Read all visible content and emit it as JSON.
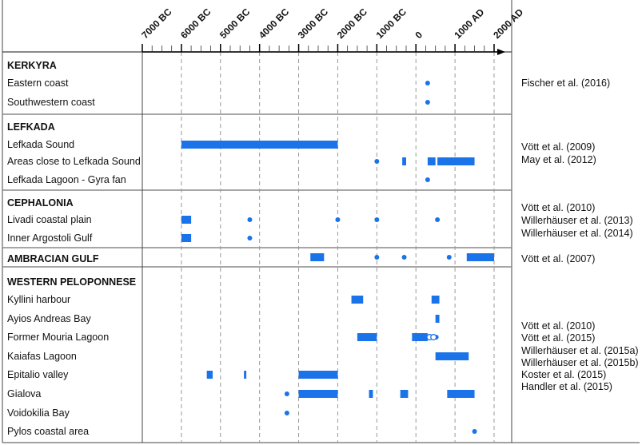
{
  "chart_data": {
    "type": "timeline",
    "x_tick_labels": [
      "7000 BC",
      "6000 BC",
      "5000 BC",
      "4000 BC",
      "3000 BC",
      "2000 BC",
      "1000 BC",
      "0",
      "1000 AD",
      "2000 AD"
    ],
    "x_range": [
      -7000,
      2000
    ],
    "groups": [
      {
        "name": "KERKYRA",
        "rows": [
          {
            "label": "Eastern coast",
            "bars": [],
            "points": [
              300
            ]
          },
          {
            "label": "Southwestern coast",
            "bars": [],
            "points": [
              300
            ]
          }
        ],
        "references": [
          "Fischer et al. (2016)"
        ]
      },
      {
        "name": "LEFKADA",
        "rows": [
          {
            "label": "Lefkada Sound",
            "bars": [
              [
                -6000,
                -2000
              ]
            ],
            "points": []
          },
          {
            "label": "Areas close to Lefkada Sound",
            "bars": [
              [
                -350,
                -250
              ],
              [
                300,
                500
              ],
              [
                550,
                1500
              ]
            ],
            "points": [
              -1000
            ]
          },
          {
            "label": "Lefkada Lagoon - Gyra fan",
            "bars": [],
            "points": [
              300
            ]
          }
        ],
        "references": [
          "Vött et al. (2009)",
          "May et al. (2012)"
        ]
      },
      {
        "name": "CEPHALONIA",
        "rows": [
          {
            "label": "Livadi coastal plain",
            "bars": [
              [
                -6000,
                -5750
              ]
            ],
            "points": [
              -4250,
              -2000,
              -1000,
              550
            ]
          },
          {
            "label": "Inner Argostoli Gulf",
            "bars": [
              [
                -6000,
                -5750
              ]
            ],
            "points": [
              -4250
            ]
          }
        ],
        "references": [
          "Vött et al. (2010)",
          "Willerhäuser et al. (2013)",
          "Willerhäuser et al. (2014)"
        ]
      },
      {
        "name": "AMBRACIAN GULF",
        "rows": [],
        "inline_bars": [
          [
            -2700,
            -2350
          ],
          [
            1300,
            2000
          ]
        ],
        "inline_points": [
          -1000,
          -300,
          850
        ],
        "references": [
          "Vött et al. (2007)"
        ]
      },
      {
        "name": "WESTERN PELOPONNESE",
        "rows": [
          {
            "label": "Kyllini harbour",
            "bars": [
              [
                -1650,
                -1350
              ],
              [
                400,
                600
              ]
            ],
            "points": []
          },
          {
            "label": "Ayios Andreas Bay",
            "bars": [
              [
                500,
                600
              ]
            ],
            "points": []
          },
          {
            "label": "Former Mouria Lagoon",
            "bars": [
              [
                -1500,
                -1000
              ],
              [
                -100,
                300
              ]
            ],
            "points": [
              520
            ],
            "open_points": [
              350,
              450
            ]
          },
          {
            "label": "Kaiafas Lagoon",
            "bars": [
              [
                500,
                1350
              ]
            ],
            "points": []
          },
          {
            "label": "Epitalio valley",
            "bars": [
              [
                -5350,
                -5200
              ],
              [
                -4400,
                -4350
              ],
              [
                -3000,
                -2000
              ]
            ],
            "points": []
          },
          {
            "label": "Gialova",
            "bars": [
              [
                -3000,
                -2000
              ],
              [
                -1200,
                -1100
              ],
              [
                -400,
                -200
              ],
              [
                800,
                1500
              ]
            ],
            "points": [
              -3300
            ]
          },
          {
            "label": "Voidokilia Bay",
            "bars": [],
            "points": [
              -3300
            ]
          },
          {
            "label": "Pylos coastal area",
            "bars": [],
            "points": [
              1500
            ]
          }
        ],
        "references": [
          "Vött et al. (2010)",
          "Vött et al. (2015)",
          "Willerhäuser et al. (2015a)",
          "Willerhäuser et al. (2015b)",
          "Koster et al. (2015)",
          "Handler et al. (2015)"
        ]
      }
    ],
    "colors": {
      "bar": "#1a73e8",
      "grid": "#999999",
      "frame": "#444444",
      "divider": "#888888"
    },
    "grid": true
  }
}
